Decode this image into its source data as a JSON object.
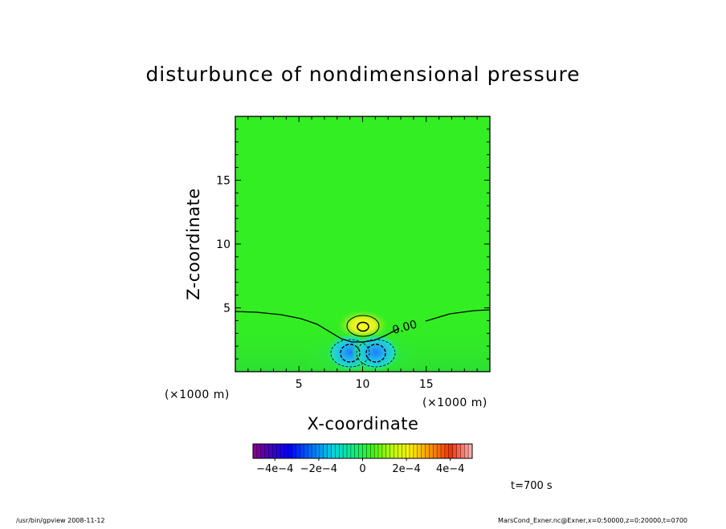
{
  "chart_data": {
    "type": "heatmap",
    "title": "disturbunce of nondimensional pressure",
    "xlabel": "X-coordinate",
    "ylabel": "Z-coordinate",
    "x_unit": "(×1000 m)",
    "z_unit": "(×1000 m)",
    "xlim": [
      0,
      20
    ],
    "zlim": [
      0,
      20
    ],
    "x_ticks": [
      5,
      10,
      15
    ],
    "z_ticks": [
      5,
      10,
      15
    ],
    "contour_labels": [
      {
        "text": "0.00",
        "x": 13.4,
        "z": 3.6
      }
    ],
    "features": [
      {
        "kind": "positive-anomaly",
        "x": 10,
        "z": 3.6,
        "value": 0.0002
      },
      {
        "kind": "negative-anomaly",
        "x": 8.9,
        "z": 1.5,
        "value": -0.0003
      },
      {
        "kind": "negative-anomaly",
        "x": 11.1,
        "z": 1.5,
        "value": -0.0003
      }
    ],
    "colorbar": {
      "range": [
        -0.0005,
        0.0005
      ],
      "tick_values": [
        -0.0004,
        -0.0002,
        0,
        0.0002,
        0.0004
      ],
      "tick_labels": [
        "−4e−4",
        "−2e−4",
        "0",
        "2e−4",
        "4e−4"
      ]
    }
  },
  "annotations": {
    "time": "t=700 s",
    "footer_left": "/usr/bin/gpview   2008-11-12",
    "footer_right": "MarsCond_Exner.nc@Exner,x=0:50000,z=0:20000,t=0700"
  },
  "colors": {
    "background_field": "#33ee22",
    "frame": "#000000"
  }
}
